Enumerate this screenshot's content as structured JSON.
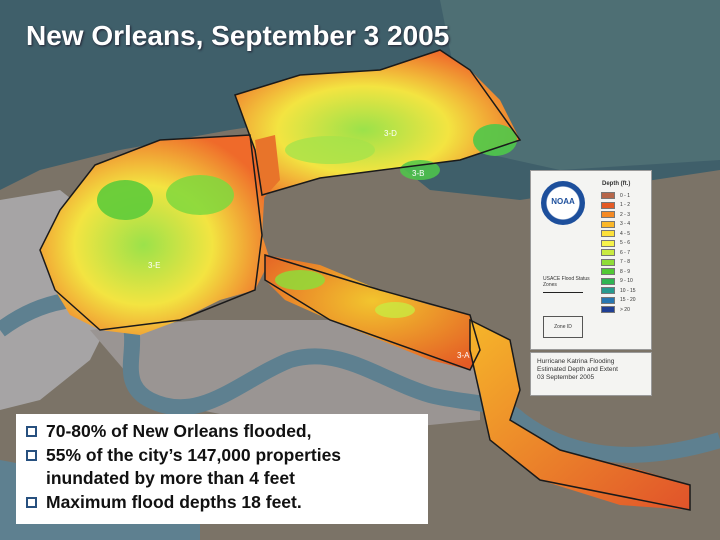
{
  "title": "New Orleans, September 3 2005",
  "bullets": [
    "70-80% of New Orleans flooded,",
    "55% of the city’s 147,000 properties inundated by more than 4 feet",
    "Maximum flood depths 18 feet."
  ],
  "legend": {
    "agency": "NOAA",
    "depth_title": "Depth (ft.)",
    "depth_classes": [
      {
        "label": "0 - 1",
        "color": "#b6664a"
      },
      {
        "label": "1 - 2",
        "color": "#e45a25"
      },
      {
        "label": "2 - 3",
        "color": "#f58a24"
      },
      {
        "label": "3 - 4",
        "color": "#fbb728"
      },
      {
        "label": "4 - 5",
        "color": "#fde13a"
      },
      {
        "label": "5 - 6",
        "color": "#f6f24a"
      },
      {
        "label": "6 - 7",
        "color": "#c9ea41"
      },
      {
        "label": "7 - 8",
        "color": "#8fdc38"
      },
      {
        "label": "8 - 9",
        "color": "#51c935"
      },
      {
        "label": "9 - 10",
        "color": "#2fb552"
      },
      {
        "label": "10 - 15",
        "color": "#279a8e"
      },
      {
        "label": "15 - 20",
        "color": "#2776b0"
      },
      {
        "label": "> 20",
        "color": "#1f3f94"
      }
    ],
    "usace_label": "USACE Flood Status Zones",
    "zone_id_label": "Zone ID"
  },
  "caption": {
    "line1": "Hurricane Katrina Flooding",
    "line2": "Estimated Depth and Extent",
    "line3": "03 September 2005"
  },
  "zone_labels": [
    "3-D",
    "3-B",
    "3-E",
    "3-A"
  ],
  "colors": {
    "water": "#3f5f6a",
    "land": "#80786e",
    "city": "#a8a6a6",
    "river": "#5e8090"
  }
}
